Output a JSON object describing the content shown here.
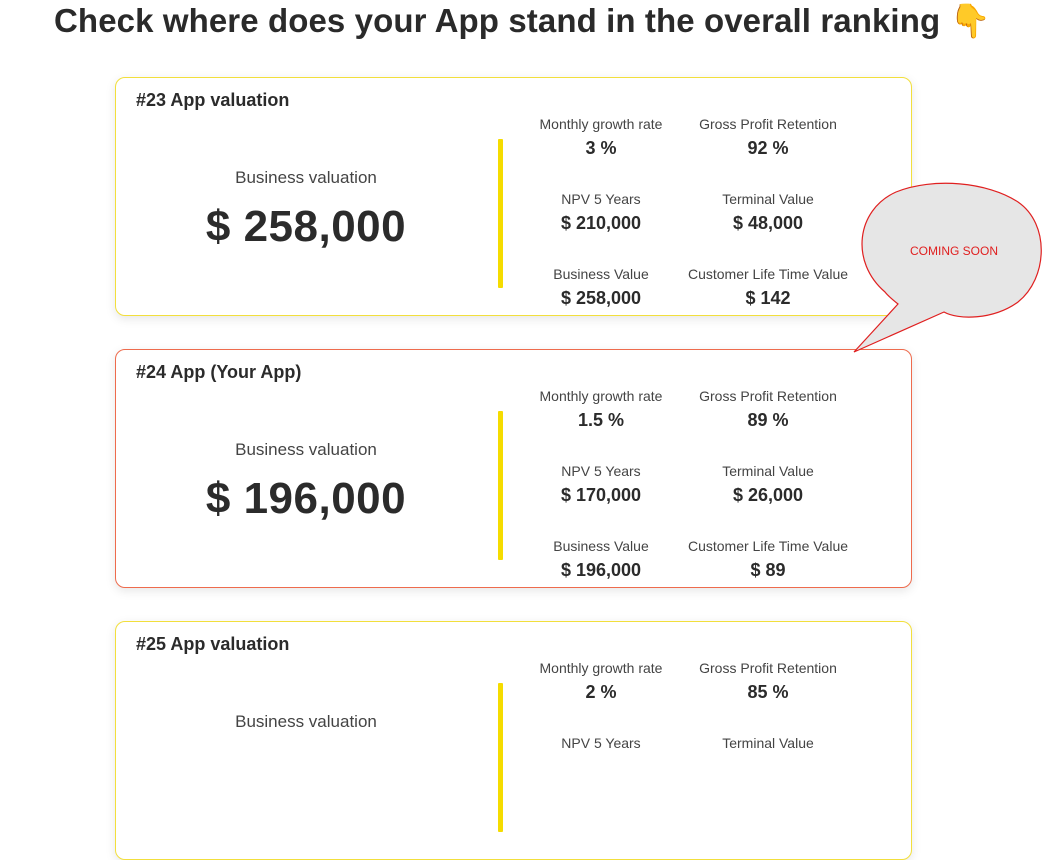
{
  "page": {
    "title": "Check where does your App stand in the overall ranking",
    "title_emoji": "👇"
  },
  "callout": {
    "text": "COMING SOON",
    "fill": "#e6e6e6",
    "stroke": "#e02020",
    "text_color": "#e02020"
  },
  "colors": {
    "accent_yellow": "#f5dc00",
    "highlight_border": "#ee6b4d",
    "card_border": "#f2df3c"
  },
  "cards": [
    {
      "title": "#23 App valuation",
      "valuation_label": "Business valuation",
      "valuation": "$ 258,000",
      "metrics": {
        "monthly_growth": {
          "label": "Monthly growth rate",
          "value": "3 %"
        },
        "gross_profit_retention": {
          "label": "Gross Profit Retention",
          "value": "92 %"
        },
        "npv": {
          "label": "NPV 5 Years",
          "value": "$ 210,000"
        },
        "terminal_value": {
          "label": "Terminal Value",
          "value": "$ 48,000"
        },
        "business_value": {
          "label": "Business Value",
          "value": "$ 258,000"
        },
        "cltv": {
          "label": "Customer Life Time Value",
          "value": "$ 142"
        }
      }
    },
    {
      "title": "#24 App (Your App)",
      "valuation_label": "Business valuation",
      "valuation": "$ 196,000",
      "metrics": {
        "monthly_growth": {
          "label": "Monthly growth rate",
          "value": "1.5 %"
        },
        "gross_profit_retention": {
          "label": "Gross Profit Retention",
          "value": "89 %"
        },
        "npv": {
          "label": "NPV 5 Years",
          "value": "$ 170,000"
        },
        "terminal_value": {
          "label": "Terminal Value",
          "value": "$ 26,000"
        },
        "business_value": {
          "label": "Business Value",
          "value": "$ 196,000"
        },
        "cltv": {
          "label": "Customer Life Time Value",
          "value": "$ 89"
        }
      }
    },
    {
      "title": "#25 App valuation",
      "valuation_label": "Business valuation",
      "valuation": "",
      "metrics": {
        "monthly_growth": {
          "label": "Monthly growth rate",
          "value": "2 %"
        },
        "gross_profit_retention": {
          "label": "Gross Profit Retention",
          "value": "85 %"
        },
        "npv": {
          "label": "NPV 5 Years",
          "value": ""
        },
        "terminal_value": {
          "label": "Terminal Value",
          "value": ""
        },
        "business_value": {
          "label": "",
          "value": ""
        },
        "cltv": {
          "label": "",
          "value": ""
        }
      }
    }
  ]
}
